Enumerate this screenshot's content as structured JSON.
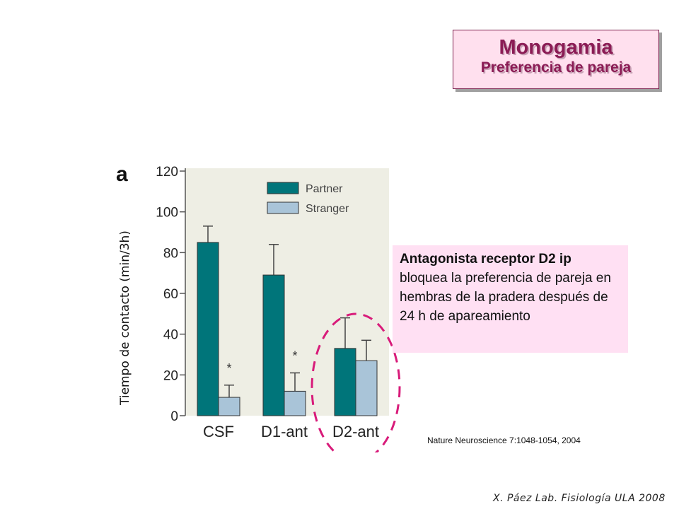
{
  "slide": {
    "title": "Monogamia",
    "subtitle": "Preferencia de pareja",
    "info_heading": "Antagonista receptor D2 ip",
    "info_body": "bloquea la preferencia de pareja en hembras de la pradera después de 24 h de apareamiento",
    "reference": "Nature Neuroscience 7:1048-1054,  2004",
    "credit": "X. Páez  Lab. Fisiología ULA 2008",
    "panel_letter": "a"
  },
  "chart_data": {
    "type": "bar",
    "ylabel": "Tiempo de contacto (min/3h)",
    "xlabel": "",
    "categories": [
      "CSF",
      "D1-ant",
      "D2-ant"
    ],
    "series": [
      {
        "name": "Partner",
        "values": [
          85,
          69,
          33
        ],
        "errors": [
          8,
          15,
          15
        ],
        "color": "#00757a"
      },
      {
        "name": "Stranger",
        "values": [
          9,
          12,
          27
        ],
        "errors": [
          6,
          9,
          10
        ],
        "color": "#a9c4d8"
      }
    ],
    "significance": [
      "*",
      "*",
      ""
    ],
    "ylim": [
      0,
      120
    ],
    "yticks": [
      0,
      20,
      40,
      60,
      80,
      100,
      120
    ],
    "legend": "top-right",
    "highlight": "D2-ant",
    "highlight_color": "#d81b7a"
  }
}
